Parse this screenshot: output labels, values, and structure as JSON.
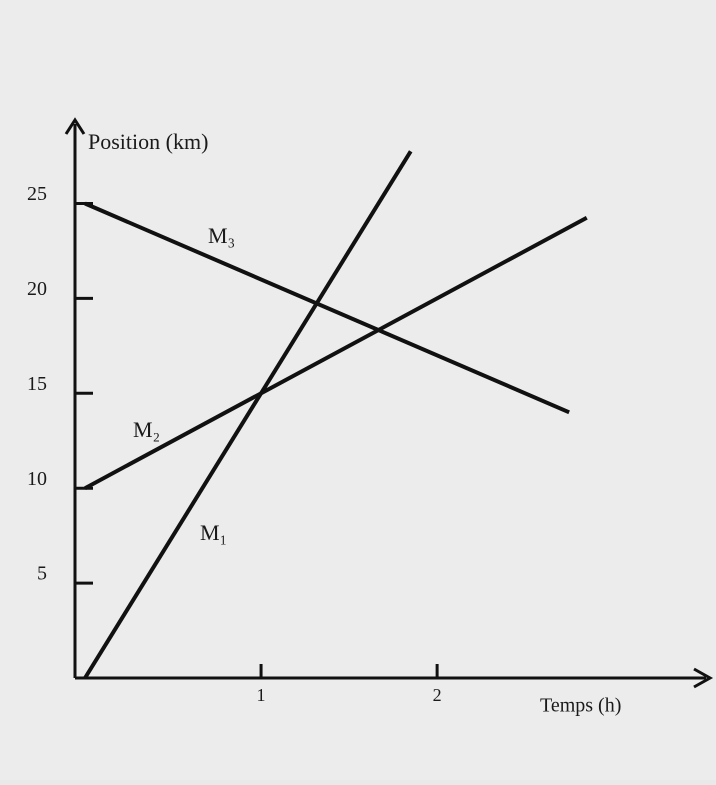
{
  "chart_data": {
    "type": "line",
    "y_label": "Position (km)",
    "x_label": "Temps (h)",
    "xlim": [
      0,
      3.55
    ],
    "ylim": [
      0,
      29.4
    ],
    "xticks": [
      1,
      2
    ],
    "yticks": [
      5,
      10,
      15,
      20,
      25
    ],
    "color": "#111111",
    "series": [
      {
        "name": "M₁",
        "x": [
          0,
          1.85
        ],
        "values": [
          0,
          27.75
        ]
      },
      {
        "name": "M₂",
        "x": [
          0,
          2.85
        ],
        "values": [
          10,
          24.25
        ]
      },
      {
        "name": "M₃",
        "x": [
          0,
          2.75
        ],
        "values": [
          25,
          14
        ]
      }
    ]
  }
}
